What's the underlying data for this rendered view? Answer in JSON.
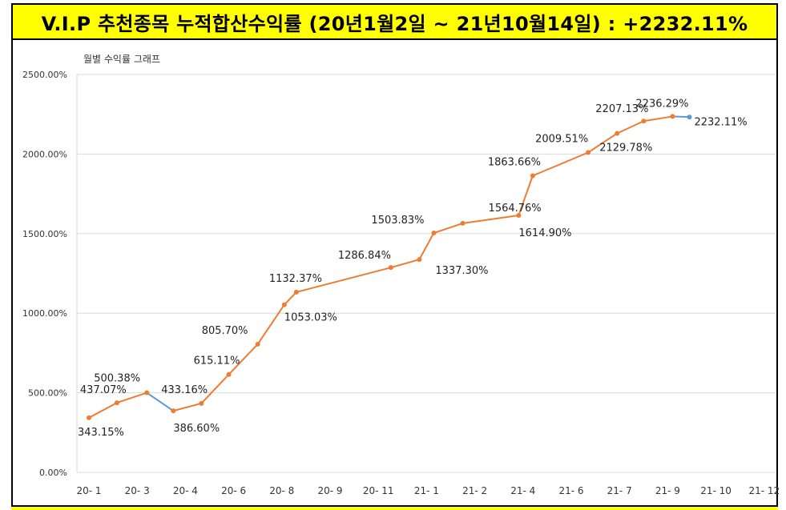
{
  "banner": {
    "title": "V.I.P 추천종목 누적합산수익률 (20년1월2일 ~ 21년10월14일) : +2232.11%"
  },
  "chart_data": {
    "type": "line",
    "title": "월별 수익률 그래프",
    "ylim": [
      0,
      2500
    ],
    "y_ticks": [
      "0.00%",
      "500.00%",
      "1000.00%",
      "1500.00%",
      "2000.00%",
      "2500.00%"
    ],
    "x_ticks": [
      "20- 1",
      "20- 3",
      "20- 4",
      "20- 6",
      "20- 8",
      "20- 9",
      "20- 11",
      "21- 1",
      "21- 2",
      "21- 4",
      "21- 6",
      "21- 7",
      "21- 9",
      "21- 10",
      "21- 12"
    ],
    "grid": true,
    "colors": {
      "line": "#ed7d31",
      "down": "#5b9bd5",
      "last_point": "#5b9bd5",
      "grid": "#d9d9d9"
    },
    "points": [
      {
        "x": 0.0,
        "y": 343.15,
        "label": "343.15%"
      },
      {
        "x": 0.58,
        "y": 437.07,
        "label": "437.07%"
      },
      {
        "x": 1.2,
        "y": 500.38,
        "label": "500.38%"
      },
      {
        "x": 1.75,
        "y": 386.6,
        "label": "386.60%"
      },
      {
        "x": 2.33,
        "y": 433.16,
        "label": "433.16%"
      },
      {
        "x": 2.9,
        "y": 615.11,
        "label": "615.11%"
      },
      {
        "x": 3.5,
        "y": 805.7,
        "label": "805.70%"
      },
      {
        "x": 4.05,
        "y": 1053.03,
        "label": "1053.03%"
      },
      {
        "x": 4.3,
        "y": 1132.37,
        "label": "1132.37%"
      },
      {
        "x": 6.26,
        "y": 1286.84,
        "label": "1286.84%"
      },
      {
        "x": 6.85,
        "y": 1337.3,
        "label": "1337.30%"
      },
      {
        "x": 7.15,
        "y": 1503.83,
        "label": "1503.83%"
      },
      {
        "x": 7.75,
        "y": 1564.76,
        "label": "1564.76%"
      },
      {
        "x": 8.91,
        "y": 1614.9,
        "label": "1614.90%"
      },
      {
        "x": 9.2,
        "y": 1863.66,
        "label": "1863.66%"
      },
      {
        "x": 10.35,
        "y": 2009.51,
        "label": "2009.51%"
      },
      {
        "x": 10.95,
        "y": 2129.78,
        "label": "2129.78%"
      },
      {
        "x": 11.5,
        "y": 2207.13,
        "label": "2207.13%"
      },
      {
        "x": 12.1,
        "y": 2236.29,
        "label": "2236.29%"
      },
      {
        "x": 12.45,
        "y": 2232.11,
        "label": "2232.11%"
      }
    ]
  }
}
